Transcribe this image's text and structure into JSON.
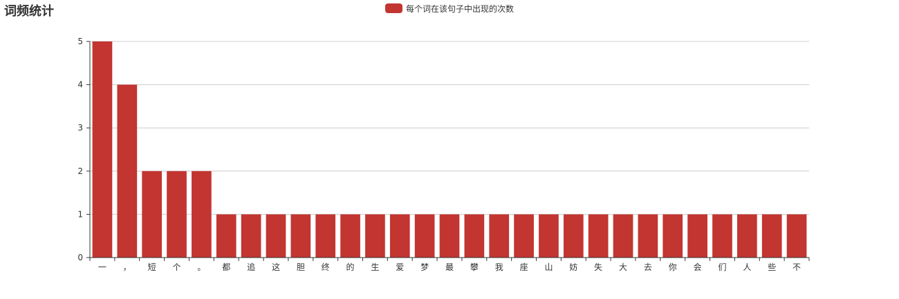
{
  "chart_data": {
    "type": "bar",
    "title": "词频统计",
    "legend": {
      "label": "每个词在该句子中出现的次数",
      "placement": "top-center"
    },
    "categories": [
      "一",
      "，",
      "短",
      "个",
      "。",
      "都",
      "追",
      "这",
      "胆",
      "终",
      "的",
      "生",
      "爱",
      "梦",
      "最",
      "攀",
      "我",
      "座",
      "山",
      "妨",
      "失",
      "大",
      "去",
      "你",
      "会",
      "们",
      "人",
      "些",
      "不"
    ],
    "series": [
      {
        "name": "每个词在该句子中出现的次数",
        "values": [
          5,
          4,
          2,
          2,
          2,
          1,
          1,
          1,
          1,
          1,
          1,
          1,
          1,
          1,
          1,
          1,
          1,
          1,
          1,
          1,
          1,
          1,
          1,
          1,
          1,
          1,
          1,
          1,
          1
        ]
      }
    ],
    "xlabel": "",
    "ylabel": "",
    "ylim": [
      0,
      5
    ],
    "yticks": [
      0,
      1,
      2,
      3,
      4,
      5
    ],
    "grid": true,
    "color": "#c23531"
  }
}
